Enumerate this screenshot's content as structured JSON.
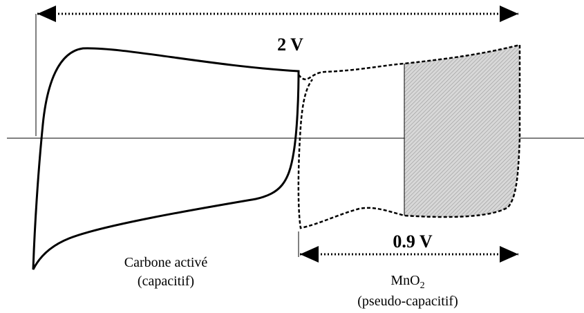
{
  "labels": {
    "range_total": "2 V",
    "range_mno2": "0.9 V"
  },
  "carbon": {
    "name": "Carbone activé",
    "type": "(capacitif)"
  },
  "mno2": {
    "name": "MnO",
    "subscript": "2",
    "type": "(pseudo-capacitif)"
  }
}
